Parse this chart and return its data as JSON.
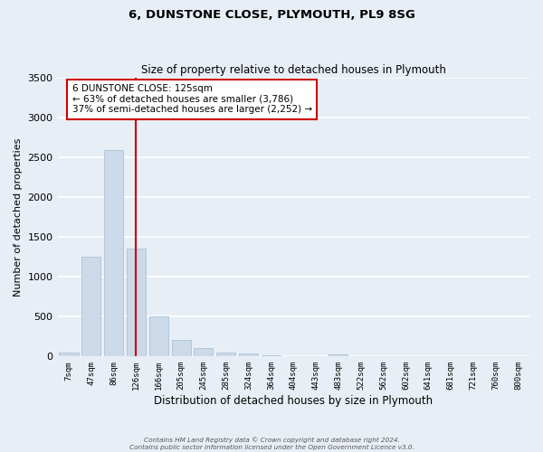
{
  "title": "6, DUNSTONE CLOSE, PLYMOUTH, PL9 8SG",
  "subtitle": "Size of property relative to detached houses in Plymouth",
  "xlabel": "Distribution of detached houses by size in Plymouth",
  "ylabel": "Number of detached properties",
  "bar_color": "#ccd9e8",
  "bar_edgecolor": "#a0bcd4",
  "background_color": "#e8eef5",
  "grid_color": "#ffffff",
  "categories": [
    "7sqm",
    "47sqm",
    "86sqm",
    "126sqm",
    "166sqm",
    "205sqm",
    "245sqm",
    "285sqm",
    "324sqm",
    "364sqm",
    "404sqm",
    "443sqm",
    "483sqm",
    "522sqm",
    "562sqm",
    "602sqm",
    "641sqm",
    "681sqm",
    "721sqm",
    "760sqm",
    "800sqm"
  ],
  "values": [
    50,
    1250,
    2590,
    1350,
    500,
    210,
    110,
    45,
    40,
    20,
    0,
    0,
    25,
    0,
    0,
    0,
    0,
    0,
    0,
    0,
    0
  ],
  "ylim": [
    0,
    3500
  ],
  "yticks": [
    0,
    500,
    1000,
    1500,
    2000,
    2500,
    3000,
    3500
  ],
  "vline_x_idx": 3,
  "vline_color": "#cc0000",
  "annotation_text": "6 DUNSTONE CLOSE: 125sqm\n← 63% of detached houses are smaller (3,786)\n37% of semi-detached houses are larger (2,252) →",
  "annotation_box_edgecolor": "#cc0000",
  "annotation_box_facecolor": "#ffffff",
  "footer_line1": "Contains HM Land Registry data © Crown copyright and database right 2024.",
  "footer_line2": "Contains public sector information licensed under the Open Government Licence v3.0."
}
